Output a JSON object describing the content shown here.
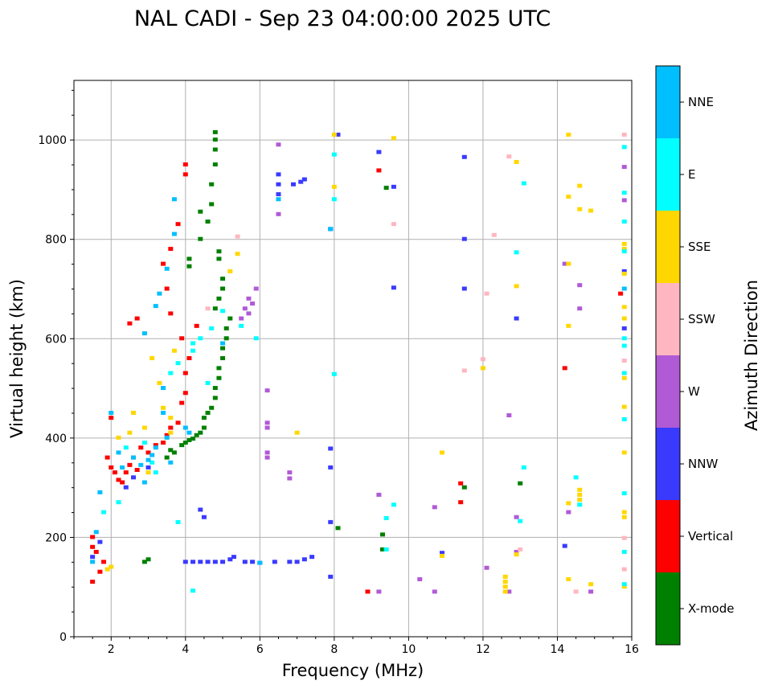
{
  "chart_data": {
    "type": "scatter",
    "title": "NAL CADI - Sep 23 04:00:00 2025 UTC",
    "xlabel": "Frequency (MHz)",
    "ylabel": "Virtual height (km)",
    "xlim": [
      1,
      16
    ],
    "ylim": [
      0,
      1120
    ],
    "xticks": [
      2,
      4,
      6,
      8,
      10,
      12,
      14,
      16
    ],
    "yticks": [
      0,
      200,
      400,
      600,
      800,
      1000
    ],
    "grid": true,
    "colorbar": {
      "label": "Azimuth Direction",
      "categories": [
        {
          "name": "X-mode",
          "color": "#008000"
        },
        {
          "name": "Vertical",
          "color": "#ff0000"
        },
        {
          "name": "NNW",
          "color": "#3a3aff"
        },
        {
          "name": "W",
          "color": "#b05ad6"
        },
        {
          "name": "SSW",
          "color": "#ffb6c1"
        },
        {
          "name": "SSE",
          "color": "#ffd700"
        },
        {
          "name": "E",
          "color": "#00ffff"
        },
        {
          "name": "NNE",
          "color": "#00bfff"
        }
      ]
    },
    "series": [
      {
        "name": "X-mode",
        "points": [
          [
            2.9,
            150
          ],
          [
            3.0,
            155
          ],
          [
            3.5,
            360
          ],
          [
            3.6,
            375
          ],
          [
            3.7,
            370
          ],
          [
            3.9,
            385
          ],
          [
            4.0,
            390
          ],
          [
            4.1,
            395
          ],
          [
            4.2,
            398
          ],
          [
            4.3,
            405
          ],
          [
            4.4,
            410
          ],
          [
            4.5,
            420
          ],
          [
            4.5,
            440
          ],
          [
            4.6,
            450
          ],
          [
            4.7,
            460
          ],
          [
            4.8,
            480
          ],
          [
            4.8,
            500
          ],
          [
            4.9,
            520
          ],
          [
            4.9,
            540
          ],
          [
            5.0,
            560
          ],
          [
            5.0,
            580
          ],
          [
            5.1,
            600
          ],
          [
            5.1,
            620
          ],
          [
            5.2,
            640
          ],
          [
            4.8,
            660
          ],
          [
            4.9,
            680
          ],
          [
            5.0,
            700
          ],
          [
            5.0,
            720
          ],
          [
            4.9,
            760
          ],
          [
            4.9,
            775
          ],
          [
            4.1,
            760
          ],
          [
            4.1,
            745
          ],
          [
            4.4,
            800
          ],
          [
            4.6,
            835
          ],
          [
            4.7,
            870
          ],
          [
            4.7,
            910
          ],
          [
            4.8,
            950
          ],
          [
            4.8,
            980
          ],
          [
            4.8,
            1000
          ],
          [
            4.8,
            1015
          ],
          [
            4.4,
            855
          ],
          [
            9.3,
            175
          ],
          [
            9.3,
            205
          ],
          [
            8.1,
            218
          ],
          [
            9.4,
            903
          ],
          [
            11.5,
            300
          ],
          [
            13.0,
            308
          ]
        ]
      },
      {
        "name": "Vertical",
        "points": [
          [
            1.5,
            200
          ],
          [
            1.5,
            180
          ],
          [
            1.6,
            170
          ],
          [
            1.5,
            110
          ],
          [
            1.7,
            130
          ],
          [
            1.8,
            150
          ],
          [
            1.9,
            360
          ],
          [
            2.0,
            340
          ],
          [
            2.0,
            440
          ],
          [
            2.1,
            330
          ],
          [
            2.2,
            315
          ],
          [
            2.3,
            310
          ],
          [
            2.4,
            330
          ],
          [
            2.5,
            345
          ],
          [
            2.6,
            360
          ],
          [
            2.7,
            335
          ],
          [
            2.8,
            380
          ],
          [
            3.0,
            370
          ],
          [
            3.2,
            385
          ],
          [
            3.4,
            390
          ],
          [
            3.5,
            405
          ],
          [
            3.6,
            420
          ],
          [
            3.8,
            430
          ],
          [
            3.9,
            470
          ],
          [
            4.0,
            490
          ],
          [
            4.0,
            530
          ],
          [
            4.1,
            560
          ],
          [
            3.9,
            600
          ],
          [
            4.3,
            625
          ],
          [
            3.6,
            650
          ],
          [
            3.5,
            700
          ],
          [
            3.4,
            750
          ],
          [
            3.6,
            780
          ],
          [
            3.8,
            830
          ],
          [
            4.0,
            930
          ],
          [
            4.0,
            950
          ],
          [
            2.5,
            630
          ],
          [
            2.7,
            640
          ],
          [
            8.9,
            90
          ],
          [
            9.2,
            938
          ],
          [
            11.4,
            270
          ],
          [
            11.4,
            308
          ],
          [
            14.2,
            540
          ],
          [
            15.7,
            690
          ]
        ]
      },
      {
        "name": "NNW",
        "points": [
          [
            1.5,
            160
          ],
          [
            1.7,
            190
          ],
          [
            2.4,
            300
          ],
          [
            2.6,
            320
          ],
          [
            3.0,
            340
          ],
          [
            4.0,
            150
          ],
          [
            4.2,
            150
          ],
          [
            4.4,
            150
          ],
          [
            4.6,
            150
          ],
          [
            4.8,
            150
          ],
          [
            5.0,
            150
          ],
          [
            5.2,
            155
          ],
          [
            5.3,
            160
          ],
          [
            5.6,
            150
          ],
          [
            5.8,
            150
          ],
          [
            6.0,
            148
          ],
          [
            6.4,
            150
          ],
          [
            6.8,
            150
          ],
          [
            7.0,
            150
          ],
          [
            7.2,
            155
          ],
          [
            7.4,
            160
          ],
          [
            4.4,
            255
          ],
          [
            4.5,
            240
          ],
          [
            6.5,
            930
          ],
          [
            6.5,
            910
          ],
          [
            6.5,
            890
          ],
          [
            6.9,
            910
          ],
          [
            7.2,
            920
          ],
          [
            7.1,
            915
          ],
          [
            7.9,
            820
          ],
          [
            7.9,
            340
          ],
          [
            7.9,
            378
          ],
          [
            7.9,
            230
          ],
          [
            7.9,
            120
          ],
          [
            8.1,
            1010
          ],
          [
            9.2,
            975
          ],
          [
            9.6,
            702
          ],
          [
            9.6,
            905
          ],
          [
            10.9,
            168
          ],
          [
            11.5,
            965
          ],
          [
            11.5,
            800
          ],
          [
            11.5,
            700
          ],
          [
            12.9,
            640
          ],
          [
            14.2,
            182
          ],
          [
            15.8,
            735
          ],
          [
            15.8,
            620
          ]
        ]
      },
      {
        "name": "W",
        "points": [
          [
            5.5,
            640
          ],
          [
            5.6,
            660
          ],
          [
            5.7,
            680
          ],
          [
            5.8,
            670
          ],
          [
            5.9,
            700
          ],
          [
            5.7,
            650
          ],
          [
            6.2,
            495
          ],
          [
            6.2,
            430
          ],
          [
            6.2,
            420
          ],
          [
            6.2,
            370
          ],
          [
            6.2,
            360
          ],
          [
            6.5,
            990
          ],
          [
            6.5,
            850
          ],
          [
            6.8,
            330
          ],
          [
            6.8,
            318
          ],
          [
            9.2,
            285
          ],
          [
            9.2,
            90
          ],
          [
            10.3,
            115
          ],
          [
            10.7,
            260
          ],
          [
            10.7,
            90
          ],
          [
            12.1,
            138
          ],
          [
            12.7,
            445
          ],
          [
            12.7,
            90
          ],
          [
            12.9,
            240
          ],
          [
            12.9,
            170
          ],
          [
            14.2,
            750
          ],
          [
            14.3,
            250
          ],
          [
            14.6,
            707
          ],
          [
            14.6,
            660
          ],
          [
            14.9,
            90
          ],
          [
            15.8,
            945
          ],
          [
            15.8,
            878
          ]
        ]
      },
      {
        "name": "SSW",
        "points": [
          [
            4.6,
            660
          ],
          [
            5.4,
            805
          ],
          [
            9.6,
            830
          ],
          [
            11.5,
            535
          ],
          [
            12.0,
            558
          ],
          [
            12.1,
            690
          ],
          [
            12.3,
            808
          ],
          [
            12.7,
            966
          ],
          [
            13.0,
            175
          ],
          [
            14.5,
            90
          ],
          [
            15.8,
            1010
          ],
          [
            15.8,
            555
          ],
          [
            15.8,
            198
          ],
          [
            15.8,
            135
          ]
        ]
      },
      {
        "name": "SSE",
        "points": [
          [
            1.9,
            135
          ],
          [
            2.0,
            140
          ],
          [
            2.2,
            400
          ],
          [
            2.5,
            410
          ],
          [
            2.6,
            450
          ],
          [
            2.9,
            420
          ],
          [
            3.0,
            330
          ],
          [
            3.1,
            560
          ],
          [
            3.3,
            510
          ],
          [
            3.4,
            460
          ],
          [
            3.6,
            440
          ],
          [
            3.6,
            410
          ],
          [
            3.7,
            575
          ],
          [
            5.2,
            735
          ],
          [
            5.4,
            770
          ],
          [
            7.0,
            410
          ],
          [
            8.0,
            905
          ],
          [
            8.0,
            1010
          ],
          [
            9.6,
            1003
          ],
          [
            10.9,
            370
          ],
          [
            10.9,
            162
          ],
          [
            12.0,
            540
          ],
          [
            12.6,
            120
          ],
          [
            12.6,
            110
          ],
          [
            12.6,
            100
          ],
          [
            12.6,
            90
          ],
          [
            12.9,
            705
          ],
          [
            12.9,
            955
          ],
          [
            12.9,
            165
          ],
          [
            14.3,
            1010
          ],
          [
            14.3,
            885
          ],
          [
            14.3,
            750
          ],
          [
            14.3,
            625
          ],
          [
            14.3,
            268
          ],
          [
            14.3,
            115
          ],
          [
            14.6,
            907
          ],
          [
            14.6,
            860
          ],
          [
            14.6,
            295
          ],
          [
            14.6,
            285
          ],
          [
            14.6,
            275
          ],
          [
            14.9,
            857
          ],
          [
            14.9,
            105
          ],
          [
            15.8,
            790
          ],
          [
            15.8,
            780
          ],
          [
            15.8,
            730
          ],
          [
            15.8,
            663
          ],
          [
            15.8,
            640
          ],
          [
            15.8,
            520
          ],
          [
            15.8,
            462
          ],
          [
            15.8,
            370
          ],
          [
            15.8,
            250
          ],
          [
            15.8,
            240
          ],
          [
            15.8,
            100
          ]
        ]
      },
      {
        "name": "E",
        "points": [
          [
            1.8,
            250
          ],
          [
            2.2,
            270
          ],
          [
            2.4,
            380
          ],
          [
            2.9,
            390
          ],
          [
            3.1,
            350
          ],
          [
            3.2,
            330
          ],
          [
            3.6,
            530
          ],
          [
            3.8,
            550
          ],
          [
            3.8,
            230
          ],
          [
            4.2,
            590
          ],
          [
            4.2,
            575
          ],
          [
            4.2,
            92
          ],
          [
            4.4,
            600
          ],
          [
            4.6,
            510
          ],
          [
            4.7,
            620
          ],
          [
            5.0,
            655
          ],
          [
            5.5,
            625
          ],
          [
            5.9,
            600
          ],
          [
            8.0,
            970
          ],
          [
            8.0,
            880
          ],
          [
            8.0,
            528
          ],
          [
            9.4,
            238
          ],
          [
            9.4,
            175
          ],
          [
            9.6,
            265
          ],
          [
            12.9,
            773
          ],
          [
            13.0,
            232
          ],
          [
            13.1,
            912
          ],
          [
            13.1,
            340
          ],
          [
            14.5,
            320
          ],
          [
            14.6,
            265
          ],
          [
            15.8,
            985
          ],
          [
            15.8,
            893
          ],
          [
            15.8,
            835
          ],
          [
            15.8,
            775
          ],
          [
            15.8,
            600
          ],
          [
            15.8,
            585
          ],
          [
            15.8,
            530
          ],
          [
            15.8,
            437
          ],
          [
            15.8,
            288
          ],
          [
            15.8,
            170
          ],
          [
            15.8,
            105
          ]
        ]
      },
      {
        "name": "NNE",
        "points": [
          [
            1.5,
            150
          ],
          [
            1.6,
            210
          ],
          [
            1.7,
            290
          ],
          [
            2.0,
            450
          ],
          [
            2.2,
            370
          ],
          [
            2.3,
            340
          ],
          [
            2.6,
            360
          ],
          [
            2.8,
            345
          ],
          [
            2.9,
            310
          ],
          [
            3.0,
            355
          ],
          [
            3.1,
            365
          ],
          [
            3.2,
            380
          ],
          [
            3.4,
            500
          ],
          [
            3.4,
            450
          ],
          [
            3.5,
            400
          ],
          [
            3.6,
            350
          ],
          [
            3.7,
            880
          ],
          [
            3.7,
            810
          ],
          [
            3.5,
            740
          ],
          [
            3.3,
            690
          ],
          [
            3.2,
            665
          ],
          [
            2.9,
            610
          ],
          [
            4.0,
            420
          ],
          [
            4.1,
            410
          ],
          [
            5.0,
            590
          ],
          [
            6.0,
            148
          ],
          [
            6.5,
            880
          ],
          [
            7.9,
            820
          ],
          [
            15.8,
            700
          ]
        ]
      }
    ]
  }
}
